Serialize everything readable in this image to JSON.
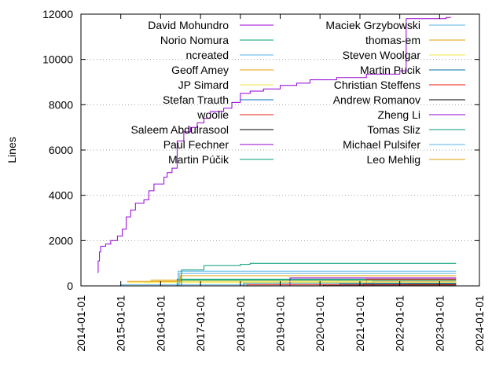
{
  "chart_data": {
    "type": "line",
    "title": "",
    "xlabel": "",
    "ylabel": "Lines",
    "x_range": [
      "2014-01-01",
      "2024-01-01"
    ],
    "ylim": [
      0,
      12000
    ],
    "y_ticks": [
      0,
      2000,
      4000,
      6000,
      8000,
      10000,
      12000
    ],
    "x_ticks": [
      "2014-01-01",
      "2015-01-01",
      "2016-01-01",
      "2017-01-01",
      "2018-01-01",
      "2019-01-01",
      "2020-01-01",
      "2021-01-01",
      "2022-01-01",
      "2023-01-01",
      "2024-01-01"
    ],
    "grid": "horizontal dotted at y ticks",
    "legend_position": "top, two columns",
    "series": [
      {
        "name": "David Mohundro",
        "color": "#9400d3",
        "points": [
          [
            "2014-06-01",
            600
          ],
          [
            "2014-06-08",
            1100
          ],
          [
            "2014-06-20",
            1500
          ],
          [
            "2014-07-01",
            1750
          ],
          [
            "2014-08-15",
            1850
          ],
          [
            "2014-10-01",
            2000
          ],
          [
            "2014-12-01",
            2200
          ],
          [
            "2015-01-15",
            2500
          ],
          [
            "2015-02-20",
            3050
          ],
          [
            "2015-04-01",
            3350
          ],
          [
            "2015-05-15",
            3650
          ],
          [
            "2015-08-01",
            3800
          ],
          [
            "2015-09-15",
            4200
          ],
          [
            "2015-11-01",
            4500
          ],
          [
            "2016-02-01",
            4800
          ],
          [
            "2016-03-01",
            5000
          ],
          [
            "2016-04-15",
            5200
          ],
          [
            "2016-06-01",
            6400
          ],
          [
            "2016-08-01",
            6800
          ],
          [
            "2016-10-01",
            7000
          ],
          [
            "2016-12-01",
            7200
          ],
          [
            "2017-02-01",
            7400
          ],
          [
            "2017-04-01",
            7700
          ],
          [
            "2017-08-01",
            7850
          ],
          [
            "2017-10-15",
            8100
          ],
          [
            "2018-01-01",
            8500
          ],
          [
            "2018-04-01",
            8600
          ],
          [
            "2018-08-01",
            8700
          ],
          [
            "2019-01-01",
            8850
          ],
          [
            "2019-06-01",
            8950
          ],
          [
            "2019-10-01",
            9100
          ],
          [
            "2020-06-01",
            9200
          ],
          [
            "2021-03-01",
            9350
          ],
          [
            "2022-01-01",
            9500
          ],
          [
            "2022-03-01",
            11800
          ],
          [
            "2023-03-01",
            11850
          ],
          [
            "2023-04-15",
            11850
          ]
        ]
      },
      {
        "name": "Norio Nomura",
        "color": "#009e73",
        "points": [
          [
            "2016-07-01",
            0
          ],
          [
            "2016-07-10",
            700
          ],
          [
            "2017-02-01",
            900
          ],
          [
            "2018-01-01",
            950
          ],
          [
            "2018-04-01",
            1000
          ],
          [
            "2023-06-01",
            1000
          ]
        ]
      },
      {
        "name": "ncreated",
        "color": "#56b4e9",
        "points": [
          [
            "2016-06-15",
            0
          ],
          [
            "2016-06-20",
            550
          ],
          [
            "2023-06-01",
            550
          ]
        ]
      },
      {
        "name": "Geoff Amey",
        "color": "#e69f00",
        "points": [
          [
            "2015-03-01",
            200
          ],
          [
            "2016-06-25",
            200
          ],
          [
            "2016-07-01",
            450
          ],
          [
            "2023-06-01",
            450
          ]
        ]
      },
      {
        "name": "JP Simard",
        "color": "#f0e442",
        "points": [
          [
            "2015-03-01",
            150
          ],
          [
            "2015-10-01",
            200
          ],
          [
            "2023-06-01",
            200
          ]
        ]
      },
      {
        "name": "Stefan Trauth",
        "color": "#0072b2",
        "points": [
          [
            "2020-06-01",
            0
          ],
          [
            "2020-07-01",
            100
          ],
          [
            "2023-06-01",
            100
          ]
        ]
      },
      {
        "name": "woolie",
        "color": "#e51e10",
        "points": [
          [
            "2018-02-01",
            0
          ],
          [
            "2018-03-01",
            50
          ],
          [
            "2023-06-01",
            50
          ]
        ]
      },
      {
        "name": "Saleem Abdulrasool",
        "color": "#000000",
        "points": [
          [
            "2021-01-01",
            0
          ],
          [
            "2021-02-01",
            60
          ],
          [
            "2023-06-01",
            60
          ]
        ]
      },
      {
        "name": "Paul Fechner",
        "color": "#9400d3",
        "points": [
          [
            "2019-03-01",
            0
          ],
          [
            "2019-04-01",
            350
          ],
          [
            "2023-06-01",
            350
          ]
        ]
      },
      {
        "name": "Martin Púčik",
        "color": "#009e73",
        "points": [
          [
            "2016-06-01",
            250
          ],
          [
            "2023-06-01",
            250
          ]
        ]
      },
      {
        "name": "Maciek Grzybowski",
        "color": "#56b4e9",
        "points": [
          [
            "2016-06-01",
            0
          ],
          [
            "2016-06-10",
            650
          ],
          [
            "2023-06-01",
            650
          ]
        ]
      },
      {
        "name": "thomas-em",
        "color": "#e69f00",
        "points": [
          [
            "2015-10-01",
            250
          ],
          [
            "2023-06-01",
            250
          ]
        ]
      },
      {
        "name": "Steven Woolgar",
        "color": "#f0e442",
        "points": [
          [
            "2015-08-01",
            150
          ],
          [
            "2023-06-01",
            150
          ]
        ]
      },
      {
        "name": "Martin Pucik",
        "color": "#0072b2",
        "points": [
          [
            "2018-01-01",
            0
          ],
          [
            "2018-02-01",
            120
          ],
          [
            "2023-06-01",
            120
          ]
        ]
      },
      {
        "name": "Christian Steffens",
        "color": "#e51e10",
        "points": [
          [
            "2021-02-01",
            0
          ],
          [
            "2021-03-01",
            300
          ],
          [
            "2023-06-01",
            300
          ]
        ]
      },
      {
        "name": "Andrew Romanov",
        "color": "#000000",
        "points": [
          [
            "2020-01-01",
            0
          ],
          [
            "2020-02-01",
            40
          ],
          [
            "2023-06-01",
            40
          ]
        ]
      },
      {
        "name": "Zheng Li",
        "color": "#9400d3",
        "points": [
          [
            "2021-04-01",
            0
          ],
          [
            "2021-05-01",
            200
          ],
          [
            "2023-06-01",
            200
          ]
        ]
      },
      {
        "name": "Tomas Sliz",
        "color": "#009e73",
        "points": [
          [
            "2016-05-01",
            0
          ],
          [
            "2016-06-01",
            300
          ],
          [
            "2023-06-01",
            300
          ]
        ]
      },
      {
        "name": "Michael Pulsifer",
        "color": "#56b4e9",
        "points": [
          [
            "2014-12-01",
            0
          ],
          [
            "2015-01-01",
            50
          ],
          [
            "2023-06-01",
            50
          ]
        ]
      },
      {
        "name": "Leo Mehlig",
        "color": "#e69f00",
        "points": [
          [
            "2022-03-01",
            0
          ],
          [
            "2022-04-01",
            80
          ],
          [
            "2023-06-01",
            80
          ]
        ]
      }
    ]
  }
}
